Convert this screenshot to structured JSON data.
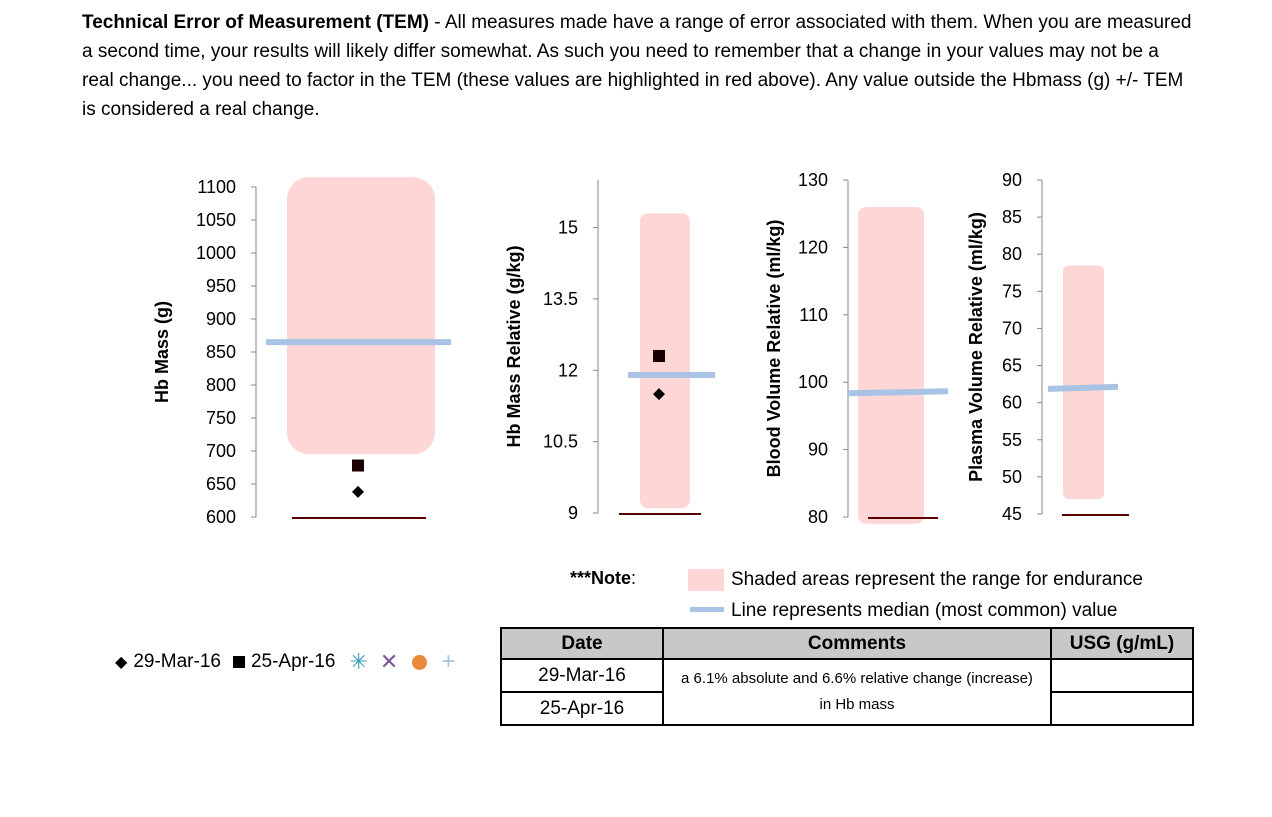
{
  "intro": {
    "heading": "Technical Error of Measurement (TEM)",
    "body": " - All measures made have a range of error associated with them.  When you are measured a second time, your results will likely differ somewhat.  As such you need to remember that a change in your values may not be a real change... you need to factor in the TEM (these values are highlighted in red above). Any value outside the Hbmass (g) +/- TEM is considered a real change."
  },
  "chart_data": [
    {
      "type": "scatter",
      "ylabel": "Hb Mass (g)",
      "ylim": [
        600,
        1100
      ],
      "yticks": [
        600,
        650,
        700,
        750,
        800,
        850,
        900,
        950,
        1000,
        1050,
        1100
      ],
      "endurance_range": [
        695,
        1115
      ],
      "median": 865,
      "series": [
        {
          "name": "29-Mar-16",
          "marker": "diamond",
          "y": 638
        },
        {
          "name": "25-Apr-16",
          "marker": "square",
          "y": 678
        }
      ]
    },
    {
      "type": "scatter",
      "ylabel": "Hb Mass Relative (g/kg)",
      "ylim": [
        9,
        16
      ],
      "yticks": [
        9,
        10.5,
        12,
        13.5,
        15
      ],
      "endurance_range": [
        9.1,
        15.3
      ],
      "median": 11.9,
      "series": [
        {
          "name": "29-Mar-16",
          "marker": "diamond",
          "y": 11.5
        },
        {
          "name": "25-Apr-16",
          "marker": "square",
          "y": 12.3
        }
      ]
    },
    {
      "type": "scatter",
      "ylabel": "Blood Volume Relative (ml/kg)",
      "ylim": [
        80,
        130
      ],
      "yticks": [
        80,
        90,
        100,
        110,
        120,
        130
      ],
      "endurance_range": [
        79,
        126
      ],
      "median": 98.5,
      "series": []
    },
    {
      "type": "scatter",
      "ylabel": "Plasma Volume Relative (ml/kg)",
      "ylim": [
        45,
        90
      ],
      "yticks": [
        45,
        50,
        55,
        60,
        65,
        70,
        75,
        80,
        85,
        90
      ],
      "endurance_range": [
        47,
        78.5
      ],
      "median": 62,
      "series": []
    }
  ],
  "note": {
    "label": "***Note",
    "colon": ":",
    "shaded": "Shaded areas represent the range for endurance",
    "line": "Line represents median (most common) value"
  },
  "legend": {
    "items": [
      "29-Mar-16",
      "25-Apr-16"
    ],
    "colors": {
      "asterisk": "#3aa0b5",
      "cross": "#7a5a9a",
      "circle": "#e98a3a",
      "plus": "#a9c3e4"
    }
  },
  "colors": {
    "range": "#ffd6d6",
    "median": "#a9c3e4",
    "baseline": "#5a0000"
  },
  "table": {
    "headers": [
      "Date",
      "Comments",
      "USG (g/mL)"
    ],
    "rows": [
      {
        "date": "29-Mar-16",
        "usg": ""
      },
      {
        "date": "25-Apr-16",
        "usg": ""
      }
    ],
    "comment": "a 6.1% absolute and 6.6% relative change (increase) in Hb mass"
  }
}
